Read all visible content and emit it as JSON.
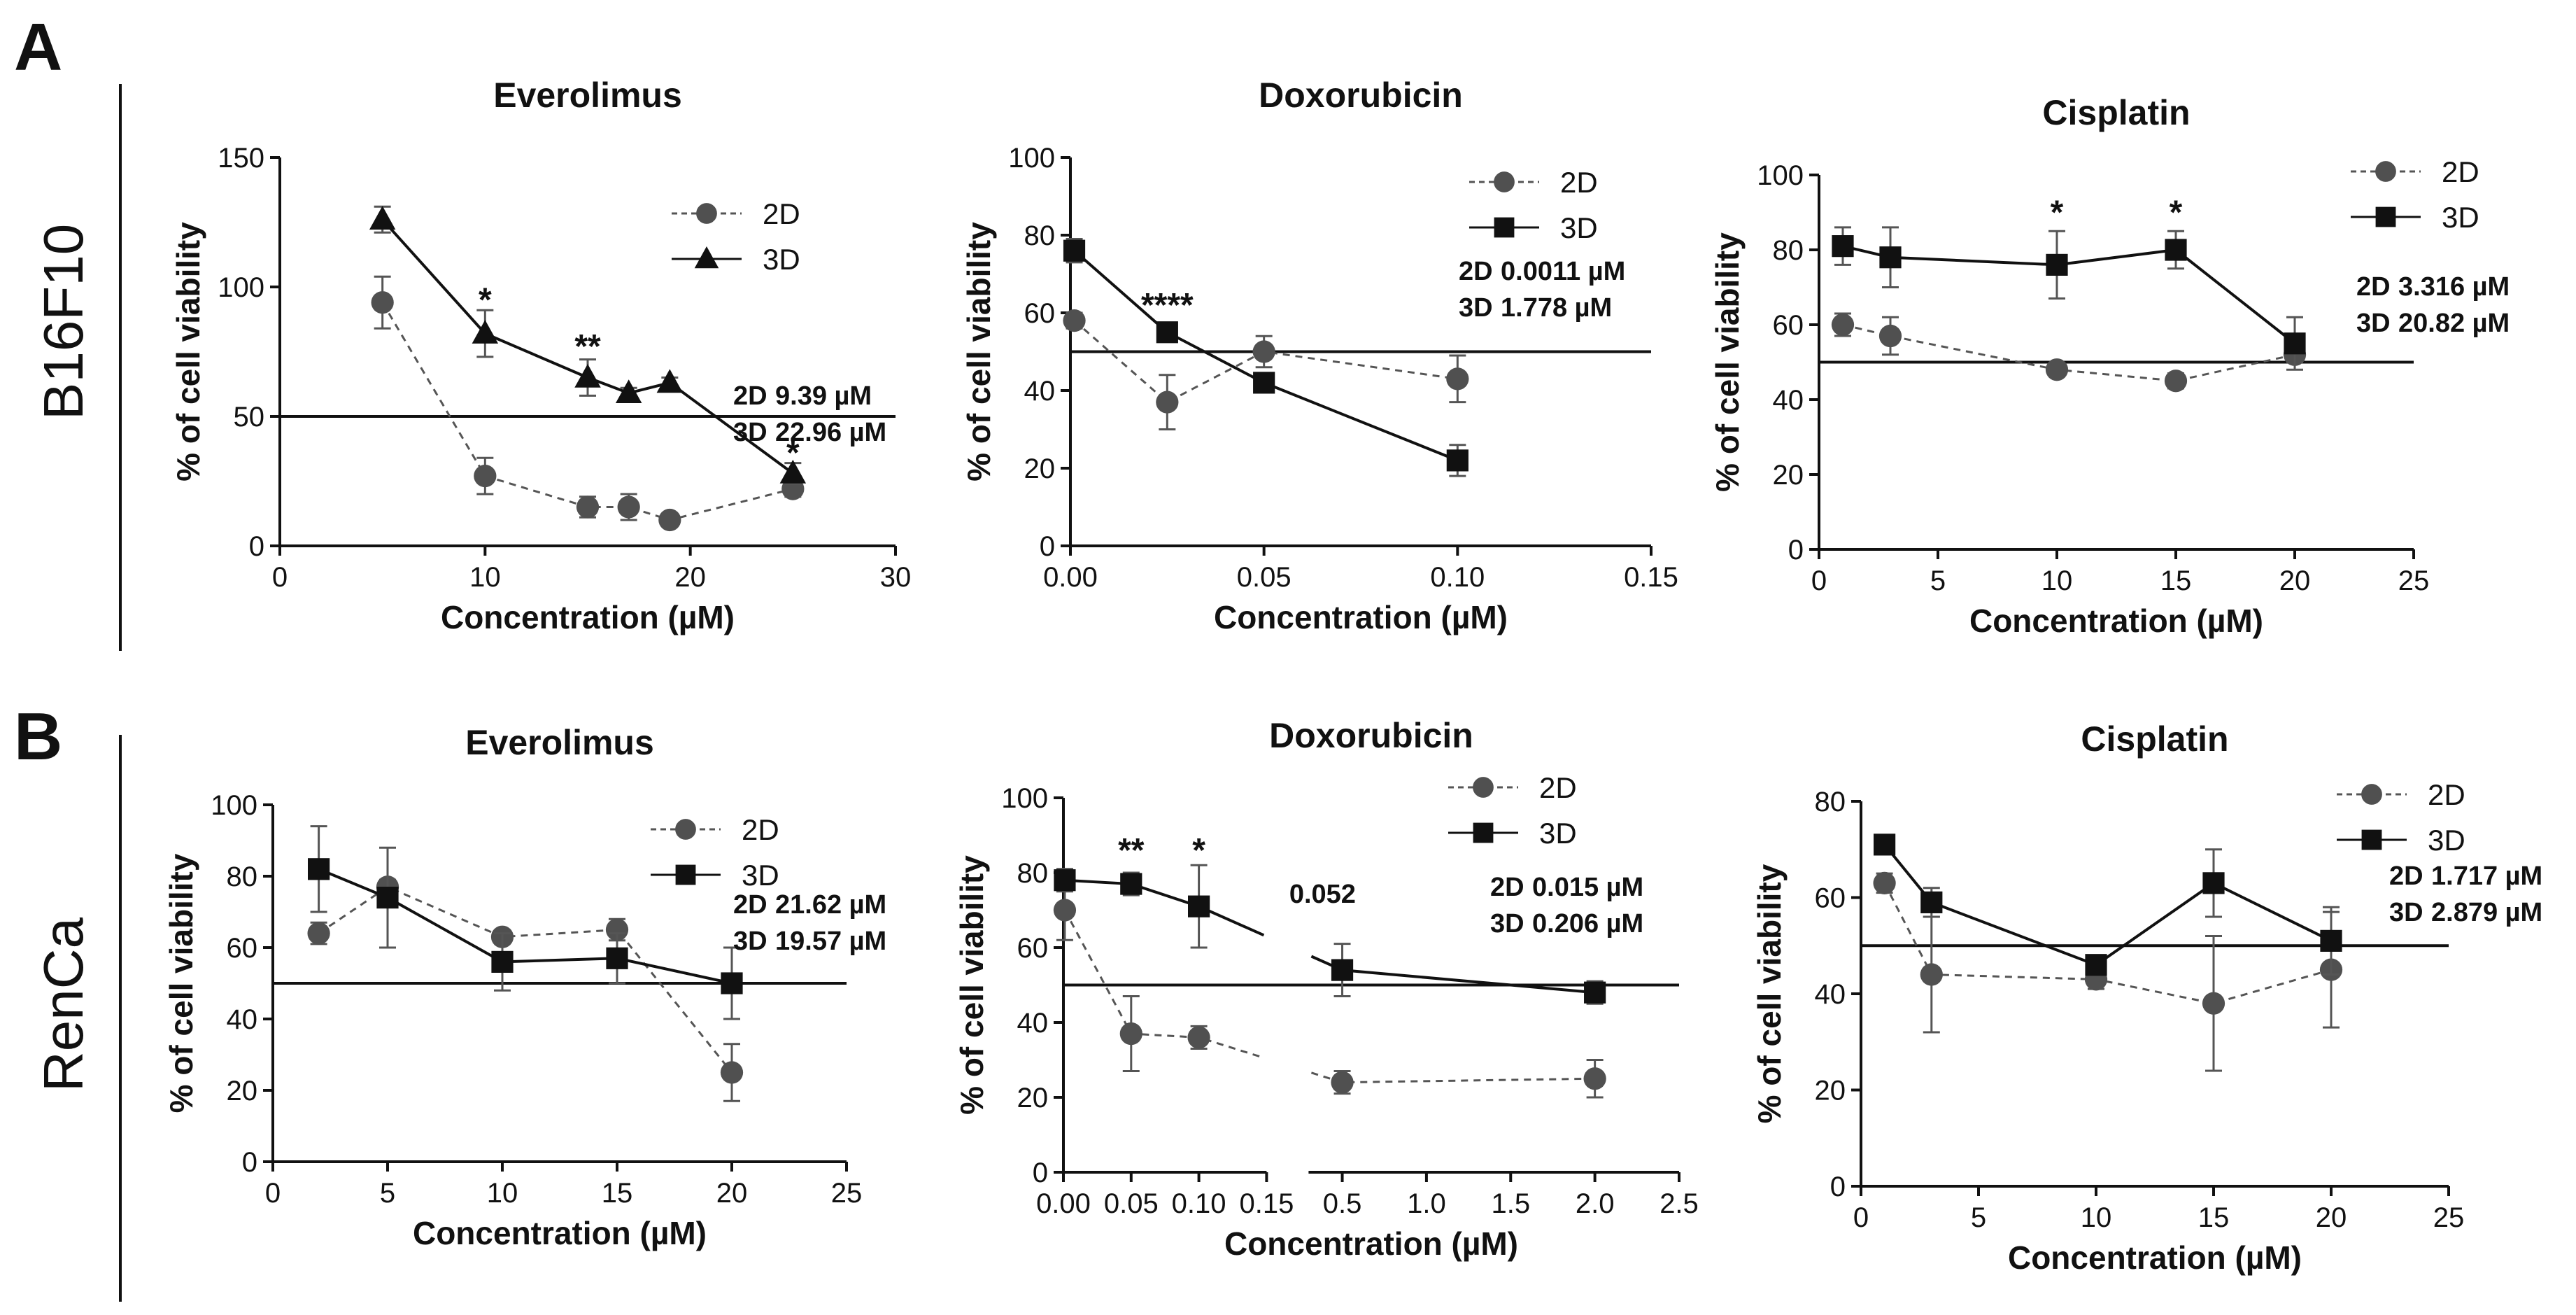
{
  "panel_labels": [
    "A",
    "B"
  ],
  "row_labels": [
    "B16F10",
    "RenCa"
  ],
  "chart_data": [
    {
      "type": "line",
      "row": 0,
      "col": 0,
      "title": "Everolimus",
      "xlabel": "Concentration (µM)",
      "ylabel": "% of cell viability",
      "xlim": [
        0,
        30
      ],
      "ylim": [
        0,
        150
      ],
      "xticks": [
        0,
        10,
        20,
        30
      ],
      "yticks": [
        0,
        50,
        100,
        150
      ],
      "threshold": 50,
      "series": [
        {
          "name": "2D",
          "marker": "circle",
          "dashed": true,
          "x": [
            5,
            10,
            15,
            17,
            19,
            25
          ],
          "y": [
            94,
            27,
            15,
            15,
            10,
            22
          ],
          "err": [
            10,
            7,
            4,
            5,
            2,
            3
          ]
        },
        {
          "name": "3D",
          "marker": "triangle",
          "dashed": false,
          "x": [
            5,
            10,
            15,
            17,
            19,
            25
          ],
          "y": [
            126,
            82,
            65,
            59,
            63,
            28
          ],
          "err": [
            5,
            9,
            7,
            2,
            2,
            4
          ]
        }
      ],
      "stars": [
        {
          "x": 10,
          "y": 95,
          "text": "*"
        },
        {
          "x": 15,
          "y": 77,
          "text": "**"
        },
        {
          "x": 25,
          "y": 36,
          "text": "*"
        }
      ],
      "ic50": [
        {
          "label": "2D",
          "value": "9.39 µM"
        },
        {
          "label": "3D",
          "value": "22.96 µM"
        }
      ]
    },
    {
      "type": "line",
      "row": 0,
      "col": 1,
      "title": "Doxorubicin",
      "xlabel": "Concentration (µM)",
      "ylabel": "% of cell viability",
      "xlim": [
        0,
        0.15
      ],
      "ylim": [
        0,
        100
      ],
      "xticks": [
        0.0,
        0.05,
        0.1,
        0.15
      ],
      "xtick_labels": [
        "0.00",
        "0.05",
        "0.10",
        "0.15"
      ],
      "yticks": [
        0,
        20,
        40,
        60,
        80,
        100
      ],
      "threshold": 50,
      "series": [
        {
          "name": "2D",
          "marker": "circle",
          "dashed": true,
          "x": [
            0.001,
            0.025,
            0.05,
            0.1
          ],
          "y": [
            58,
            37,
            50,
            43
          ],
          "err": [
            2,
            7,
            4,
            6
          ]
        },
        {
          "name": "3D",
          "marker": "square",
          "dashed": false,
          "x": [
            0.001,
            0.025,
            0.05,
            0.1
          ],
          "y": [
            76,
            55,
            42,
            22
          ],
          "err": [
            3,
            2,
            2,
            4
          ]
        }
      ],
      "stars": [
        {
          "x": 0.025,
          "y": 62,
          "text": "****"
        }
      ],
      "ic50": [
        {
          "label": "2D",
          "value": "0.0011 µM"
        },
        {
          "label": "3D",
          "value": "1.778 µM"
        }
      ]
    },
    {
      "type": "line",
      "row": 0,
      "col": 2,
      "title": "Cisplatin",
      "xlabel": "Concentration (µM)",
      "ylabel": "% of cell viability",
      "xlim": [
        0,
        25
      ],
      "ylim": [
        0,
        100
      ],
      "xticks": [
        0,
        5,
        10,
        15,
        20,
        25
      ],
      "yticks": [
        0,
        20,
        40,
        60,
        80,
        100
      ],
      "threshold": 50,
      "series": [
        {
          "name": "2D",
          "marker": "circle",
          "dashed": true,
          "x": [
            1,
            3,
            10,
            15,
            20
          ],
          "y": [
            60,
            57,
            48,
            45,
            52
          ],
          "err": [
            3,
            5,
            1,
            2,
            2
          ]
        },
        {
          "name": "3D",
          "marker": "square",
          "dashed": false,
          "x": [
            1,
            3,
            10,
            15,
            20
          ],
          "y": [
            81,
            78,
            76,
            80,
            55
          ],
          "err": [
            5,
            8,
            9,
            5,
            7
          ]
        }
      ],
      "stars": [
        {
          "x": 10,
          "y": 90,
          "text": "*"
        },
        {
          "x": 15,
          "y": 90,
          "text": "*"
        }
      ],
      "ic50": [
        {
          "label": "2D",
          "value": "3.316 µM"
        },
        {
          "label": "3D",
          "value": "20.82 µM"
        }
      ]
    },
    {
      "type": "line",
      "row": 1,
      "col": 0,
      "title": "Everolimus",
      "xlabel": "Concentration (µM)",
      "ylabel": "% of cell viability",
      "xlim": [
        0,
        25
      ],
      "ylim": [
        0,
        100
      ],
      "xticks": [
        0,
        5,
        10,
        15,
        20,
        25
      ],
      "yticks": [
        0,
        20,
        40,
        60,
        80,
        100
      ],
      "threshold": 50,
      "series": [
        {
          "name": "2D",
          "marker": "circle",
          "dashed": true,
          "x": [
            2,
            5,
            10,
            15,
            20
          ],
          "y": [
            64,
            77,
            63,
            65,
            25
          ],
          "err": [
            3,
            2,
            1,
            3,
            8
          ]
        },
        {
          "name": "3D",
          "marker": "square",
          "dashed": false,
          "x": [
            2,
            5,
            10,
            15,
            20
          ],
          "y": [
            82,
            74,
            56,
            57,
            50
          ],
          "err": [
            12,
            14,
            8,
            7,
            10
          ]
        }
      ],
      "stars": [],
      "ic50": [
        {
          "label": "2D",
          "value": "21.62 µM"
        },
        {
          "label": "3D",
          "value": "19.57 µM"
        }
      ]
    },
    {
      "type": "line",
      "row": 1,
      "col": 1,
      "broken_axis": true,
      "title": "Doxorubicin",
      "xlabel": "Concentration (µM)",
      "ylabel": "% of cell viability",
      "ylim": [
        0,
        100
      ],
      "yticks": [
        0,
        20,
        40,
        60,
        80,
        100
      ],
      "x_segments": [
        {
          "xlim": [
            0,
            0.15
          ],
          "xticks": [
            0.0,
            0.05,
            0.1,
            0.15
          ],
          "xtick_labels": [
            "0.00",
            "0.05",
            "0.10",
            "0.15"
          ]
        },
        {
          "xlim": [
            0.3,
            2.5
          ],
          "xticks": [
            0.5,
            1.0,
            1.5,
            2.0,
            2.5
          ],
          "xtick_labels": [
            "0.5",
            "1.0",
            "1.5",
            "2.0",
            "2.5"
          ]
        }
      ],
      "threshold": 50,
      "series": [
        {
          "name": "2D",
          "marker": "circle",
          "dashed": true,
          "x": [
            0.001,
            0.05,
            0.1,
            0.5,
            2.0
          ],
          "y": [
            70,
            37,
            36,
            24,
            25
          ],
          "err": [
            8,
            10,
            3,
            3,
            5
          ]
        },
        {
          "name": "3D",
          "marker": "square",
          "dashed": false,
          "x": [
            0.001,
            0.05,
            0.1,
            0.5,
            2.0
          ],
          "y": [
            78,
            77,
            71,
            54,
            48
          ],
          "err": [
            3,
            3,
            11,
            7,
            3
          ]
        }
      ],
      "stars": [
        {
          "x": 0.05,
          "y": 86,
          "text": "**"
        },
        {
          "x": 0.1,
          "y": 86,
          "text": "*"
        }
      ],
      "annotation": "0.052",
      "ic50": [
        {
          "label": "2D",
          "value": "0.015 µM"
        },
        {
          "label": "3D",
          "value": "0.206 µM"
        }
      ]
    },
    {
      "type": "line",
      "row": 1,
      "col": 2,
      "title": "Cisplatin",
      "xlabel": "Concentration (µM)",
      "ylabel": "% of cell viability",
      "xlim": [
        0,
        25
      ],
      "ylim": [
        0,
        80
      ],
      "xticks": [
        0,
        5,
        10,
        15,
        20,
        25
      ],
      "yticks": [
        0,
        20,
        40,
        60,
        80
      ],
      "threshold": 50,
      "series": [
        {
          "name": "2D",
          "marker": "circle",
          "dashed": true,
          "x": [
            1,
            3,
            10,
            15,
            20
          ],
          "y": [
            63,
            44,
            43,
            38,
            45
          ],
          "err": [
            2,
            12,
            2,
            14,
            12
          ]
        },
        {
          "name": "3D",
          "marker": "square",
          "dashed": false,
          "x": [
            1,
            3,
            10,
            15,
            20
          ],
          "y": [
            71,
            59,
            46,
            63,
            51
          ],
          "err": [
            1,
            3,
            2,
            7,
            7
          ]
        }
      ],
      "stars": [],
      "ic50": [
        {
          "label": "2D",
          "value": "1.717 µM"
        },
        {
          "label": "3D",
          "value": "2.879 µM"
        }
      ]
    }
  ]
}
